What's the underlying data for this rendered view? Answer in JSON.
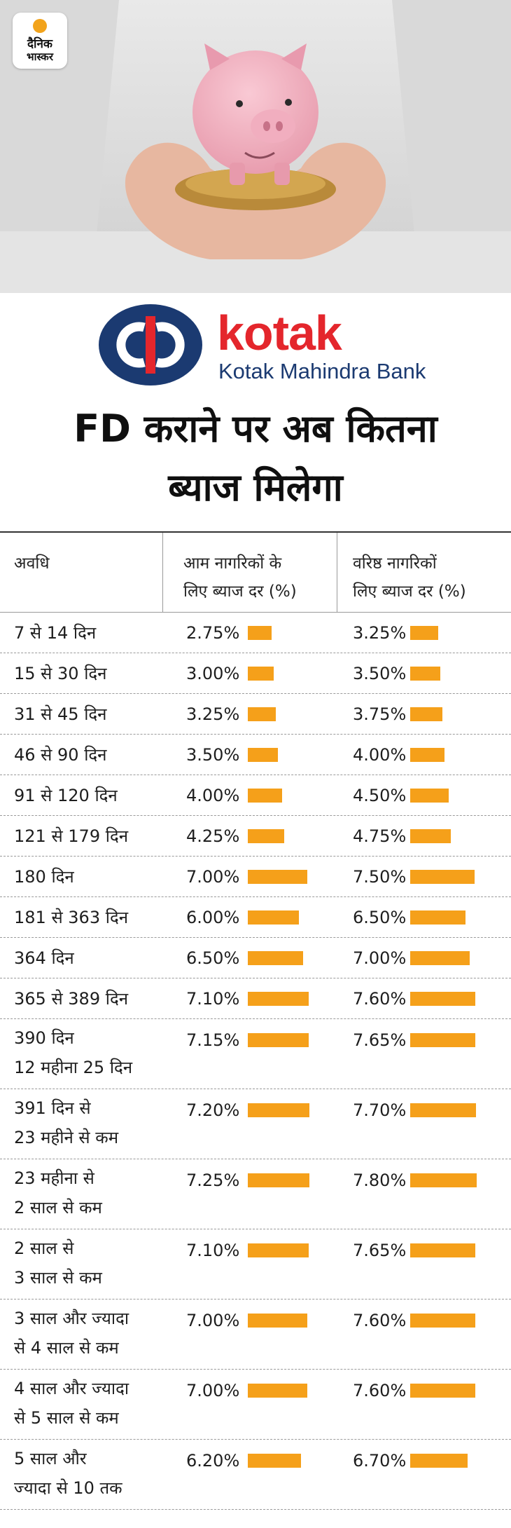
{
  "publisher": {
    "logo_line1": "दैनिक",
    "logo_line2": "भास्कर"
  },
  "bank": {
    "name": "kotak",
    "full_name": "Kotak Mahindra Bank"
  },
  "headline": [
    "FD कराने पर अब कितना",
    "ब्याज मिलेगा"
  ],
  "colors": {
    "bar": "#f5a01a",
    "brand_red": "#e4262c",
    "brand_blue": "#1b3a71"
  },
  "table": {
    "headers": [
      "अवधि",
      "आम नागरिकों के\nलिए ब्याज दर (%)",
      "वरिष्ठ नागरिकों\nलिए ब्याज दर (%)"
    ]
  },
  "chart_data": {
    "type": "table",
    "title": "FD कराने पर अब कितना ब्याज मिलेगा",
    "unit": "%",
    "columns": [
      "अवधि",
      "आम नागरिकों के लिए ब्याज दर (%)",
      "वरिष्ठ नागरिकों लिए ब्याज दर (%)"
    ],
    "rows": [
      {
        "period": "7 से 14 दिन",
        "general": 2.75,
        "senior": 3.25,
        "general_label": "2.75%",
        "senior_label": "3.25%"
      },
      {
        "period": "15 से 30 दिन",
        "general": 3.0,
        "senior": 3.5,
        "general_label": "3.00%",
        "senior_label": "3.50%"
      },
      {
        "period": "31 से 45 दिन",
        "general": 3.25,
        "senior": 3.75,
        "general_label": "3.25%",
        "senior_label": "3.75%"
      },
      {
        "period": "46 से 90 दिन",
        "general": 3.5,
        "senior": 4.0,
        "general_label": "3.50%",
        "senior_label": "4.00%"
      },
      {
        "period": "91 से 120 दिन",
        "general": 4.0,
        "senior": 4.5,
        "general_label": "4.00%",
        "senior_label": "4.50%"
      },
      {
        "period": "121 से 179 दिन",
        "general": 4.25,
        "senior": 4.75,
        "general_label": "4.25%",
        "senior_label": "4.75%"
      },
      {
        "period": "180 दिन",
        "general": 7.0,
        "senior": 7.5,
        "general_label": "7.00%",
        "senior_label": "7.50%"
      },
      {
        "period": "181 से 363 दिन",
        "general": 6.0,
        "senior": 6.5,
        "general_label": "6.00%",
        "senior_label": "6.50%"
      },
      {
        "period": "364 दिन",
        "general": 6.5,
        "senior": 7.0,
        "general_label": "6.50%",
        "senior_label": "7.00%"
      },
      {
        "period": "365 से 389 दिन",
        "general": 7.1,
        "senior": 7.6,
        "general_label": "7.10%",
        "senior_label": "7.60%"
      },
      {
        "period": "390 दिन\n12 महीना 25 दिन",
        "general": 7.15,
        "senior": 7.65,
        "general_label": "7.15%",
        "senior_label": "7.65%"
      },
      {
        "period": "391 दिन से\n23 महीने से कम",
        "general": 7.2,
        "senior": 7.7,
        "general_label": "7.20%",
        "senior_label": "7.70%"
      },
      {
        "period": "23 महीना से\n2 साल से कम",
        "general": 7.25,
        "senior": 7.8,
        "general_label": "7.25%",
        "senior_label": "7.80%"
      },
      {
        "period": "2 साल से\n3 साल से कम",
        "general": 7.1,
        "senior": 7.65,
        "general_label": "7.10%",
        "senior_label": "7.65%"
      },
      {
        "period": "3 साल और ज्यादा\nसे 4 साल से कम",
        "general": 7.0,
        "senior": 7.6,
        "general_label": "7.00%",
        "senior_label": "7.60%"
      },
      {
        "period": "4 साल और ज्यादा\nसे 5 साल से कम",
        "general": 7.0,
        "senior": 7.6,
        "general_label": "7.00%",
        "senior_label": "7.60%"
      },
      {
        "period": "5 साल और\nज्यादा से 10 तक",
        "general": 6.2,
        "senior": 6.7,
        "general_label": "6.20%",
        "senior_label": "6.70%"
      }
    ]
  }
}
